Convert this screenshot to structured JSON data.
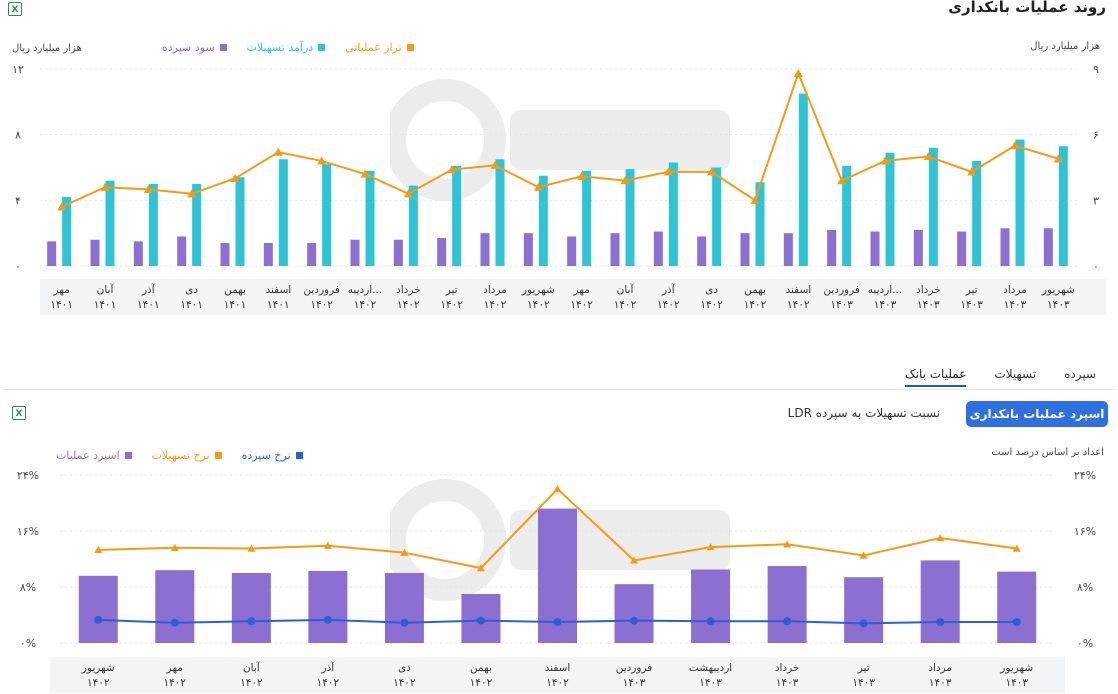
{
  "page": {
    "title": "روند عملیات بانکداری",
    "tabs": [
      {
        "label": "سپرده",
        "active": false
      },
      {
        "label": "تسهیلات",
        "active": false
      },
      {
        "label": "عملیات بانک",
        "active": true
      }
    ],
    "primary_button": "اسپرد عملیات بانکداری",
    "secondary_button": "نسبت تسهیلات به سپرده LDR",
    "note": "اعداد بر اساس درصد است"
  },
  "chart_data": [
    {
      "type": "bar",
      "left_unit": "هزار میلیارد ریال",
      "right_unit": "هزار میلیارد ریال",
      "left_ticks": [
        "۰",
        "۴",
        "۸",
        "۱۲"
      ],
      "right_ticks": [
        "۰",
        "۳",
        "۶",
        "۹"
      ],
      "ylim_left": [
        0,
        12
      ],
      "ylim_right": [
        0,
        9
      ],
      "categories": [
        [
          "مهر",
          "۱۴۰۱"
        ],
        [
          "آبان",
          "۱۴۰۱"
        ],
        [
          "آذر",
          "۱۴۰۱"
        ],
        [
          "دی",
          "۱۴۰۱"
        ],
        [
          "بهمن",
          "۱۴۰۱"
        ],
        [
          "اسفند",
          "۱۴۰۱"
        ],
        [
          "فروردین",
          "۱۴۰۲"
        ],
        [
          "اردیبه...",
          "۱۴۰۲"
        ],
        [
          "خرداد",
          "۱۴۰۲"
        ],
        [
          "تیر",
          "۱۴۰۲"
        ],
        [
          "مرداد",
          "۱۴۰۲"
        ],
        [
          "شهریور",
          "۱۴۰۲"
        ],
        [
          "مهر",
          "۱۴۰۲"
        ],
        [
          "آبان",
          "۱۴۰۲"
        ],
        [
          "آذر",
          "۱۴۰۲"
        ],
        [
          "دی",
          "۱۴۰۲"
        ],
        [
          "بهمن",
          "۱۴۰۲"
        ],
        [
          "اسفند",
          "۱۴۰۲"
        ],
        [
          "فروردین",
          "۱۴۰۳"
        ],
        [
          "اردیبه...",
          "۱۴۰۳"
        ],
        [
          "خرداد",
          "۱۴۰۳"
        ],
        [
          "تیر",
          "۱۴۰۳"
        ],
        [
          "مرداد",
          "۱۴۰۳"
        ],
        [
          "شهریور",
          "۱۴۰۳"
        ]
      ],
      "series": [
        {
          "name": "سود سپرده",
          "kind": "bar",
          "axis": "left",
          "color": "#8b6fd1",
          "values": [
            1.5,
            1.6,
            1.5,
            1.8,
            1.4,
            1.4,
            1.4,
            1.6,
            1.6,
            1.7,
            2.0,
            2.0,
            1.8,
            2.0,
            2.1,
            1.8,
            2.0,
            2.0,
            2.2,
            2.1,
            2.2,
            2.1,
            2.3,
            2.3
          ]
        },
        {
          "name": "درآمد تسهیلات",
          "kind": "bar",
          "axis": "left",
          "color": "#2ec4d6",
          "values": [
            4.2,
            5.2,
            5.0,
            5.0,
            5.4,
            6.5,
            6.2,
            5.8,
            4.9,
            6.1,
            6.5,
            5.5,
            5.8,
            5.9,
            6.3,
            6.0,
            5.1,
            10.5,
            6.1,
            6.9,
            7.2,
            6.4,
            7.7,
            7.3
          ]
        },
        {
          "name": "تراز عملیاتی",
          "kind": "line",
          "axis": "right",
          "color": "#f39c12",
          "values": [
            2.7,
            3.6,
            3.5,
            3.3,
            4.0,
            5.2,
            4.8,
            4.2,
            3.3,
            4.4,
            4.6,
            3.6,
            4.1,
            3.9,
            4.3,
            4.3,
            3.0,
            8.8,
            3.9,
            4.8,
            5.0,
            4.3,
            5.5,
            4.9
          ]
        }
      ]
    },
    {
      "type": "bar",
      "left_ticks": [
        "۰%",
        "۸%",
        "۱۶%",
        "۲۴%"
      ],
      "right_ticks": [
        "۰%",
        "۸%",
        "۱۶%",
        "۲۴%"
      ],
      "ylim": [
        0,
        24
      ],
      "categories": [
        [
          "شهریور",
          "۱۴۰۲"
        ],
        [
          "مهر",
          "۱۴۰۲"
        ],
        [
          "آبان",
          "۱۴۰۲"
        ],
        [
          "آذر",
          "۱۴۰۲"
        ],
        [
          "دی",
          "۱۴۰۲"
        ],
        [
          "بهمن",
          "۱۴۰۲"
        ],
        [
          "اسفند",
          "۱۴۰۲"
        ],
        [
          "فروردین",
          "۱۴۰۳"
        ],
        [
          "اردیبهشت",
          "۱۴۰۳"
        ],
        [
          "خرداد",
          "۱۴۰۳"
        ],
        [
          "تیر",
          "۱۴۰۳"
        ],
        [
          "مرداد",
          "۱۴۰۳"
        ],
        [
          "شهریور",
          "۱۴۰۳"
        ]
      ],
      "series": [
        {
          "name": "اسپرد عملیات",
          "kind": "bar",
          "color": "#8b6fd1",
          "values": [
            9.6,
            10.4,
            10.0,
            10.3,
            10.0,
            7.0,
            19.2,
            8.4,
            10.5,
            11.0,
            9.4,
            11.8,
            10.2
          ]
        },
        {
          "name": "نرخ تسهیلات",
          "kind": "line",
          "color": "#f39c12",
          "values": [
            13.3,
            13.6,
            13.5,
            13.9,
            12.9,
            10.7,
            22.0,
            11.8,
            13.7,
            14.1,
            12.5,
            15.0,
            13.5
          ]
        },
        {
          "name": "نرخ سپرده",
          "kind": "line",
          "color": "#2c5fd6",
          "values": [
            3.3,
            2.9,
            3.1,
            3.3,
            2.9,
            3.2,
            3.0,
            3.2,
            3.1,
            3.1,
            2.8,
            3.0,
            3.0
          ]
        }
      ]
    }
  ]
}
